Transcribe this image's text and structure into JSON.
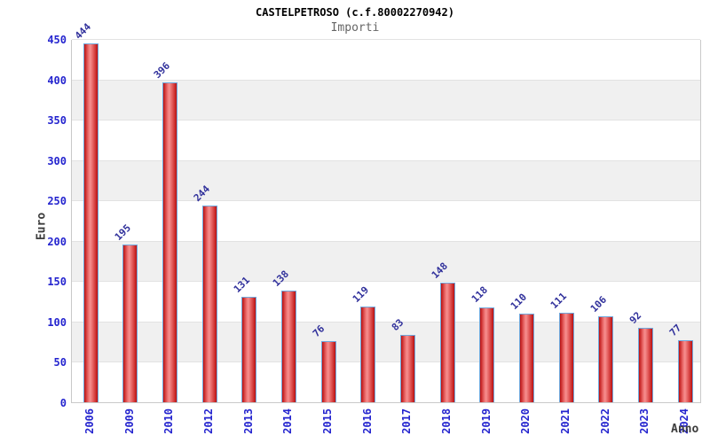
{
  "chart_data": {
    "type": "bar",
    "title": "CASTELPETROSO (c.f.80002270942)",
    "subtitle": "Importi",
    "xlabel": "Anno",
    "ylabel": "Euro",
    "categories": [
      "2006",
      "2009",
      "2010",
      "2012",
      "2013",
      "2014",
      "2015",
      "2016",
      "2017",
      "2018",
      "2019",
      "2020",
      "2021",
      "2022",
      "2023",
      "2024"
    ],
    "values": [
      444,
      195,
      396,
      244,
      131,
      138,
      76,
      119,
      83,
      148,
      118,
      110,
      111,
      106,
      92,
      77
    ],
    "ylim": [
      0,
      450
    ],
    "ytick_step": 50,
    "yticks": [
      0,
      50,
      100,
      150,
      200,
      250,
      300,
      350,
      400,
      450
    ],
    "grid": "alternating-horizontal-bands",
    "legend": "none",
    "bar_value_labels_rotation_deg": -45,
    "xtick_rotation_deg": -90
  },
  "colors": {
    "tick_color": "#2525cf",
    "value_color": "#30309b",
    "bar_border": "#6fa8dc",
    "bar_dark": "#bb1010",
    "bar_light": "#f68f8f",
    "band_gray": "#f0f0f0",
    "plot_border": "#c9c9c9",
    "title_color": "#000000",
    "subtitle_color": "#666666",
    "axis_title_color": "#3d3d3d"
  }
}
